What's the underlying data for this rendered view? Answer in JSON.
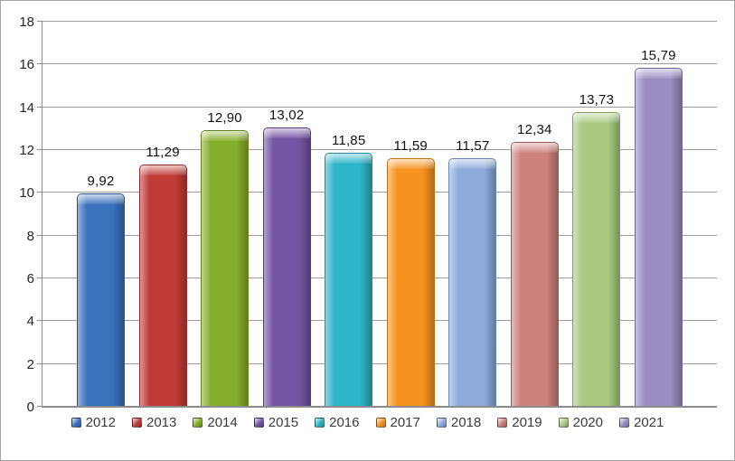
{
  "chart_data": {
    "type": "bar",
    "title": "",
    "xlabel": "",
    "ylabel": "",
    "categories": [
      "2012",
      "2013",
      "2014",
      "2015",
      "2016",
      "2017",
      "2018",
      "2019",
      "2020",
      "2021"
    ],
    "values": [
      9.92,
      11.29,
      12.9,
      13.02,
      11.85,
      11.59,
      11.57,
      12.34,
      13.73,
      15.79
    ],
    "value_labels": [
      "9,92",
      "11,29",
      "12,90",
      "13,02",
      "11,85",
      "11,59",
      "11,57",
      "12,34",
      "13,73",
      "15,79"
    ],
    "decimal_separator": ",",
    "ylim": [
      0,
      18
    ],
    "ytick_step": 2,
    "ytick_labels": [
      "0",
      "2",
      "4",
      "6",
      "8",
      "10",
      "12",
      "14",
      "16",
      "18"
    ],
    "grid": true,
    "legend_position": "bottom",
    "bar_colors": [
      "#3A71BC",
      "#C13B37",
      "#86AE2D",
      "#7355A3",
      "#2DB5C9",
      "#F69320",
      "#8EABDB",
      "#CE817D",
      "#A9CA7F",
      "#9B8DC1"
    ],
    "bar_colors_dark": [
      "#2B549B",
      "#922B28",
      "#64831F",
      "#55407B",
      "#218A9B",
      "#C26F10",
      "#6484B4",
      "#A65651",
      "#81A355",
      "#746698"
    ]
  },
  "colors": {
    "background": "#FFFFFF",
    "chart_border": "#A6A6A6",
    "gridline": "#9D9D9D",
    "axis_line": "#8C8C8C",
    "value_label_text": "#111111",
    "tick_label_text": "#262626",
    "legend_text": "#3A3A3A"
  }
}
